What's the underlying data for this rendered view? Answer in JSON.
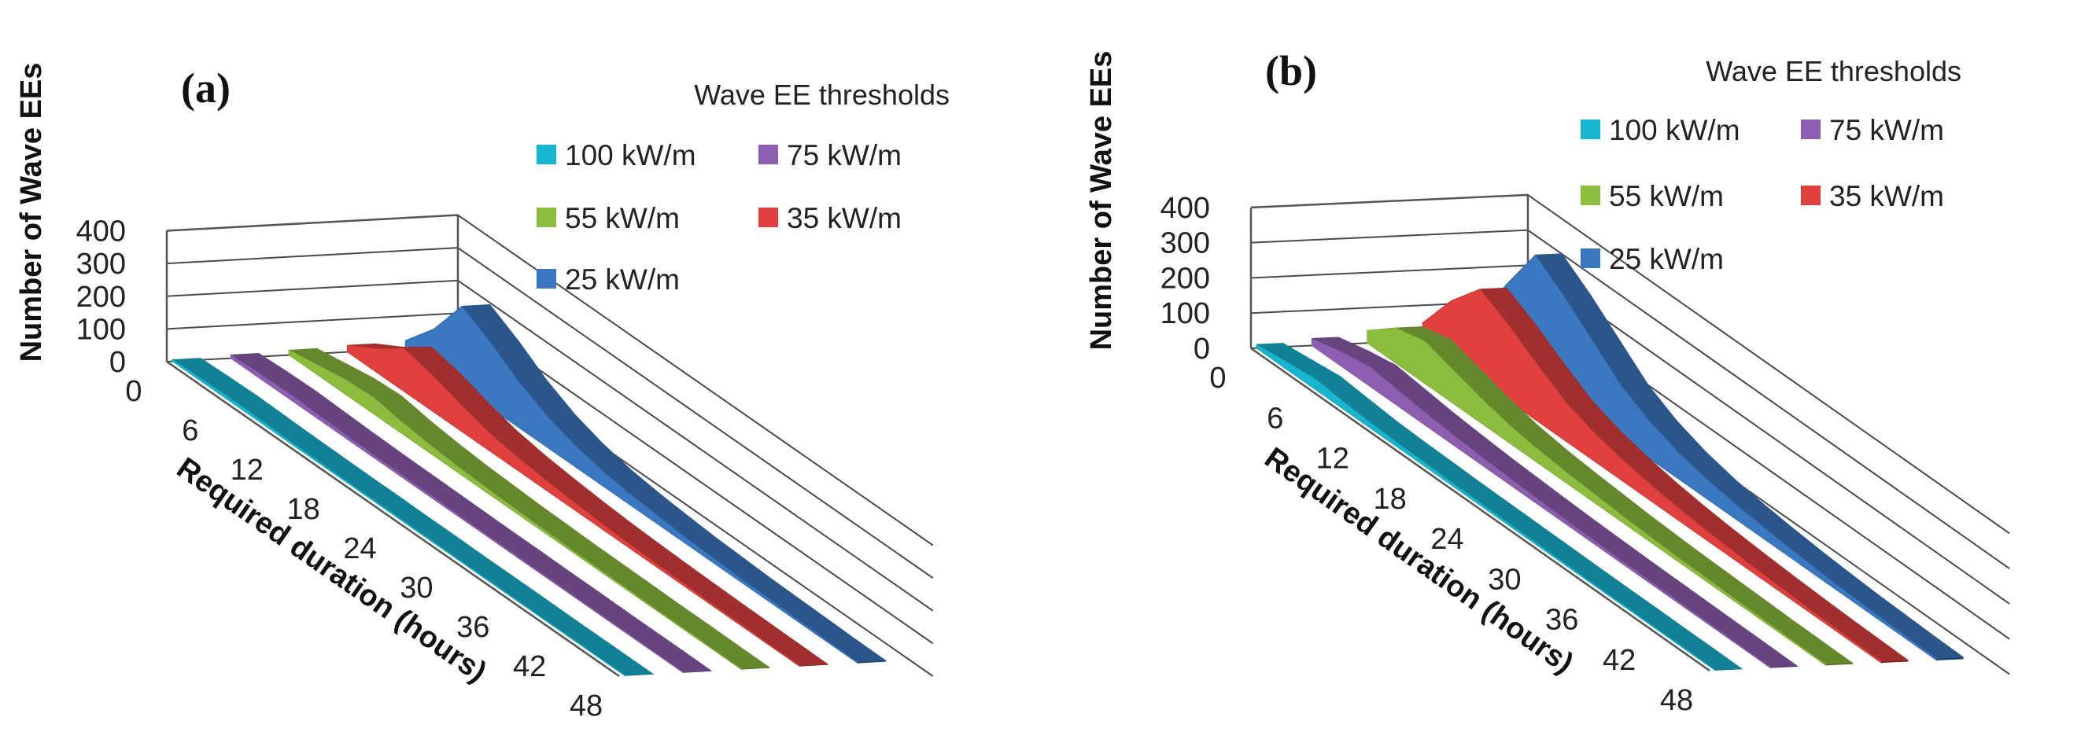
{
  "chart_data": [
    {
      "type": "area",
      "panel_label": "(a)",
      "ylabel": "Number of Wave  EEs",
      "xlabel": "Required duration (hours)",
      "y_ticks": [
        "0",
        "100",
        "200",
        "300",
        "400"
      ],
      "x_ticks": [
        "0",
        "6",
        "12",
        "18",
        "24",
        "30",
        "36",
        "42",
        "48"
      ],
      "ylim": [
        0,
        400
      ],
      "legend_title": "Wave EE thresholds",
      "x": [
        0,
        3,
        6,
        9,
        12,
        15,
        18,
        21,
        24,
        27,
        30,
        33,
        36,
        39,
        42,
        45,
        48
      ],
      "series": [
        {
          "name": "100 kW/m",
          "color": "#17b5cf",
          "values": [
            5,
            8,
            10,
            8,
            6,
            5,
            4,
            4,
            3,
            3,
            2,
            2,
            2,
            1,
            1,
            1,
            1
          ]
        },
        {
          "name": "75 kW/m",
          "color": "#8e5fb1",
          "values": [
            10,
            14,
            16,
            13,
            10,
            8,
            7,
            6,
            5,
            4,
            4,
            3,
            3,
            2,
            2,
            2,
            1
          ]
        },
        {
          "name": "55 kW/m",
          "color": "#8dbd3e",
          "values": [
            15,
            30,
            45,
            50,
            35,
            25,
            18,
            14,
            10,
            8,
            6,
            5,
            4,
            3,
            3,
            2,
            2
          ]
        },
        {
          "name": "35 kW/m",
          "color": "#e0413e",
          "values": [
            20,
            70,
            130,
            110,
            80,
            55,
            40,
            30,
            22,
            16,
            12,
            9,
            7,
            5,
            4,
            3,
            2
          ]
        },
        {
          "name": "25 kW/m",
          "color": "#3a78c2",
          "values": [
            25,
            120,
            250,
            200,
            140,
            95,
            65,
            45,
            33,
            25,
            18,
            14,
            10,
            8,
            6,
            4,
            3
          ]
        }
      ]
    },
    {
      "type": "area",
      "panel_label": "(b)",
      "ylabel": "Number of Wave  EEs",
      "xlabel": "Required duration (hours)",
      "y_ticks": [
        "0",
        "100",
        "200",
        "300",
        "400"
      ],
      "x_ticks": [
        "0",
        "6",
        "12",
        "18",
        "24",
        "30",
        "36",
        "42",
        "48"
      ],
      "ylim": [
        0,
        400
      ],
      "legend_title": "Wave EE thresholds",
      "x": [
        0,
        3,
        6,
        9,
        12,
        15,
        18,
        21,
        24,
        27,
        30,
        33,
        36,
        39,
        42,
        45,
        48
      ],
      "series": [
        {
          "name": "100 kW/m",
          "color": "#17b5cf",
          "values": [
            10,
            20,
            30,
            22,
            15,
            12,
            10,
            8,
            7,
            6,
            5,
            4,
            3,
            3,
            2,
            2,
            1
          ]
        },
        {
          "name": "75 kW/m",
          "color": "#8e5fb1",
          "values": [
            20,
            40,
            55,
            45,
            35,
            28,
            22,
            18,
            14,
            11,
            9,
            7,
            6,
            5,
            4,
            3,
            2
          ]
        },
        {
          "name": "55 kW/m",
          "color": "#8dbd3e",
          "values": [
            35,
            100,
            120,
            95,
            70,
            50,
            38,
            30,
            24,
            18,
            14,
            11,
            9,
            7,
            5,
            4,
            3
          ]
        },
        {
          "name": "35 kW/m",
          "color": "#e0413e",
          "values": [
            50,
            170,
            260,
            215,
            160,
            110,
            80,
            60,
            45,
            34,
            26,
            20,
            15,
            11,
            8,
            6,
            4
          ]
        },
        {
          "name": "25 kW/m",
          "color": "#3a78c2",
          "values": [
            60,
            210,
            350,
            290,
            220,
            150,
            105,
            75,
            55,
            42,
            32,
            24,
            18,
            13,
            10,
            7,
            5
          ]
        }
      ]
    }
  ]
}
